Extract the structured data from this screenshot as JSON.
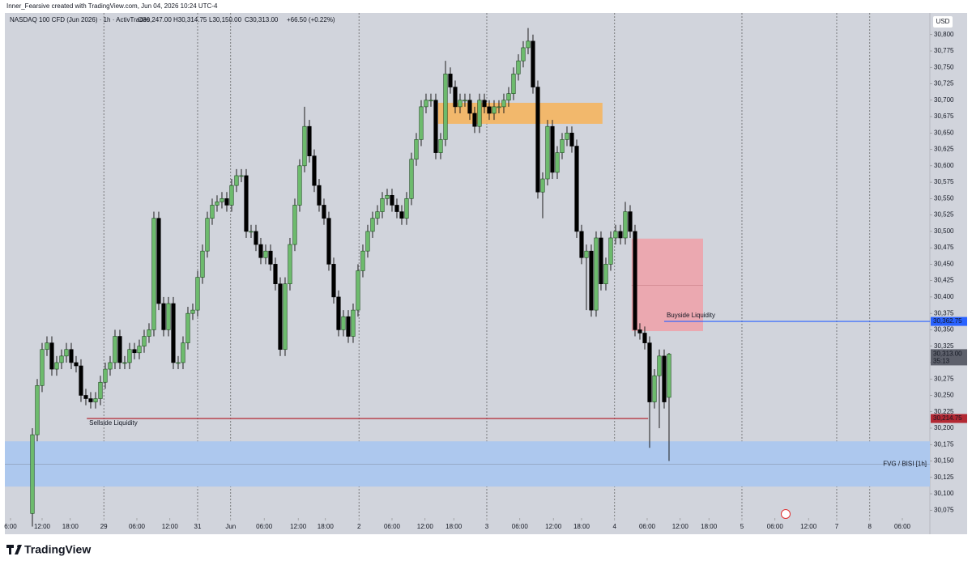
{
  "header": "Inner_Fearsive created with TradingView.com, Jun 04, 2026 10:24 UTC-4",
  "brand": "TradingView",
  "chart_data": {
    "type": "candlestick",
    "title": "NASDAQ 100 CFD (Jun 2026) · 1h · ActivTrades",
    "ohlc_labels": [
      "O30,247.00",
      "H30,314.75",
      "L30,150.00",
      "C30,313.00",
      "+66.50 (+0.22%)"
    ],
    "currency": "USD",
    "up_color": "#6dbb6d",
    "down_color": "#000000",
    "open": [
      30070,
      30190,
      30265,
      30320,
      30330,
      30290,
      30300,
      30310,
      30320,
      30300,
      30295,
      30250,
      30245,
      30240,
      30245,
      30270,
      30290,
      30300,
      30340,
      30300,
      30300,
      30320,
      30315,
      30325,
      30340,
      30350,
      30520,
      30390,
      30350,
      30390,
      30300,
      30300,
      30330,
      30375,
      30380,
      30430,
      30470,
      30520,
      30540,
      30545,
      30550,
      30540,
      30570,
      30585,
      30585,
      30500,
      30500,
      30480,
      30460,
      30470,
      30450,
      30420,
      30320,
      30420,
      30480,
      30540,
      30600,
      30660,
      30615,
      30570,
      30540,
      30520,
      30450,
      30400,
      30350,
      30370,
      30340,
      30380,
      30440,
      30470,
      30500,
      30520,
      30530,
      30550,
      30555,
      30540,
      30530,
      30520,
      30550,
      30610,
      30640,
      30690,
      30700,
      30700,
      30620,
      30640,
      30740,
      30720,
      30690,
      30700,
      30700,
      30680,
      30660,
      30700,
      30690,
      30680,
      30690,
      30690,
      30700,
      30710,
      30740,
      30760,
      30780,
      30790,
      30720,
      30560,
      30580,
      30660,
      30590,
      30620,
      30640,
      30650,
      30630,
      30500,
      30460,
      30470,
      30380,
      30490,
      30420,
      30450,
      30490,
      30500,
      30490,
      30530,
      30500,
      30350,
      30345,
      30330,
      30240,
      30280,
      30310,
      30247
    ],
    "high": [
      30200,
      30275,
      30330,
      30340,
      30340,
      30310,
      30320,
      30330,
      30330,
      30310,
      30305,
      30260,
      30255,
      30255,
      30280,
      30300,
      30310,
      30350,
      30350,
      30310,
      30330,
      30330,
      30335,
      30350,
      30360,
      30530,
      30530,
      30400,
      30400,
      30400,
      30310,
      30340,
      30385,
      30390,
      30440,
      30480,
      30530,
      30550,
      30555,
      30560,
      30560,
      30580,
      30595,
      30595,
      30595,
      30510,
      30510,
      30490,
      30480,
      30480,
      30460,
      30430,
      30430,
      30490,
      30550,
      30610,
      30690,
      30670,
      30625,
      30580,
      30550,
      30530,
      30460,
      30410,
      30380,
      30380,
      30390,
      30450,
      30480,
      30510,
      30530,
      30540,
      30560,
      30565,
      30565,
      30550,
      30540,
      30560,
      30620,
      30650,
      30700,
      30710,
      30710,
      30710,
      30650,
      30760,
      30750,
      30730,
      30710,
      30710,
      30710,
      30690,
      30710,
      30710,
      30700,
      30700,
      30700,
      30710,
      30720,
      30750,
      30770,
      30790,
      30810,
      30800,
      30730,
      30590,
      30670,
      30670,
      30630,
      30650,
      30660,
      30660,
      30640,
      30510,
      30480,
      30480,
      30500,
      30500,
      30460,
      30500,
      30510,
      30510,
      30545,
      30540,
      30510,
      30360,
      30355,
      30340,
      30290,
      30320,
      30320,
      30314.75
    ],
    "low": [
      30050,
      30180,
      30255,
      30310,
      30280,
      30280,
      30290,
      30300,
      30290,
      30285,
      30240,
      30235,
      30230,
      30230,
      30235,
      30260,
      30280,
      30290,
      30290,
      30290,
      30290,
      30305,
      30305,
      30315,
      30330,
      30340,
      30380,
      30340,
      30340,
      30290,
      30290,
      30290,
      30320,
      30365,
      30370,
      30420,
      30460,
      30510,
      30530,
      30535,
      30530,
      30530,
      30560,
      30575,
      30490,
      30490,
      30470,
      30450,
      30450,
      30440,
      30410,
      30310,
      30310,
      30410,
      30470,
      30530,
      30590,
      30605,
      30560,
      30530,
      30510,
      30440,
      30390,
      30340,
      30340,
      30330,
      30330,
      30370,
      30430,
      30460,
      30490,
      30510,
      30520,
      30540,
      30530,
      30520,
      30510,
      30510,
      30540,
      30600,
      30630,
      30680,
      30690,
      30610,
      30610,
      30630,
      30710,
      30680,
      30680,
      30690,
      30670,
      30650,
      30650,
      30680,
      30670,
      30670,
      30680,
      30680,
      30690,
      30700,
      30730,
      30750,
      30770,
      30710,
      30550,
      30520,
      30570,
      30580,
      30580,
      30610,
      30630,
      30620,
      30490,
      30450,
      30380,
      30370,
      30370,
      30410,
      30410,
      30440,
      30480,
      30480,
      30480,
      30490,
      30340,
      30335,
      30320,
      30170,
      30230,
      30200,
      30230,
      30150
    ],
    "close": [
      30190,
      30265,
      30320,
      30330,
      30290,
      30300,
      30310,
      30320,
      30300,
      30295,
      30250,
      30245,
      30240,
      30245,
      30270,
      30290,
      30300,
      30340,
      30300,
      30300,
      30320,
      30315,
      30325,
      30340,
      30350,
      30520,
      30390,
      30350,
      30390,
      30300,
      30300,
      30330,
      30375,
      30380,
      30430,
      30470,
      30520,
      30540,
      30545,
      30550,
      30540,
      30570,
      30585,
      30585,
      30500,
      30500,
      30480,
      30460,
      30470,
      30450,
      30420,
      30320,
      30420,
      30480,
      30540,
      30600,
      30660,
      30615,
      30570,
      30540,
      30520,
      30450,
      30400,
      30350,
      30370,
      30340,
      30380,
      30440,
      30470,
      30500,
      30520,
      30530,
      30550,
      30555,
      30540,
      30530,
      30520,
      30550,
      30610,
      30640,
      30690,
      30700,
      30700,
      30620,
      30640,
      30740,
      30720,
      30690,
      30700,
      30700,
      30680,
      30660,
      30700,
      30690,
      30680,
      30690,
      30690,
      30700,
      30710,
      30740,
      30760,
      30780,
      30790,
      30720,
      30560,
      30580,
      30660,
      30590,
      30620,
      30640,
      30650,
      30630,
      30500,
      30460,
      30470,
      30380,
      30490,
      30420,
      30450,
      30490,
      30500,
      30490,
      30530,
      30500,
      30350,
      30345,
      30330,
      30240,
      30280,
      30310,
      30240,
      30313
    ],
    "last_price_label": "30,313.00",
    "countdown": "35:13",
    "ylim": [
      30063,
      30833
    ],
    "yticks": [
      {
        "value": 30075,
        "label": "30,075"
      },
      {
        "value": 30100,
        "label": "30,100"
      },
      {
        "value": 30125,
        "label": "30,125"
      },
      {
        "value": 30150,
        "label": "30,150"
      },
      {
        "value": 30175,
        "label": "30,175"
      },
      {
        "value": 30200,
        "label": "30,200"
      },
      {
        "value": 30225,
        "label": "30,225"
      },
      {
        "value": 30250,
        "label": "30,250"
      },
      {
        "value": 30275,
        "label": "30,275"
      },
      {
        "value": 30300,
        "label": "30,300"
      },
      {
        "value": 30325,
        "label": "30,325"
      },
      {
        "value": 30350,
        "label": "30,350"
      },
      {
        "value": 30375,
        "label": "30,375"
      },
      {
        "value": 30400,
        "label": "30,400"
      },
      {
        "value": 30425,
        "label": "30,425"
      },
      {
        "value": 30450,
        "label": "30,450"
      },
      {
        "value": 30475,
        "label": "30,475"
      },
      {
        "value": 30500,
        "label": "30,500"
      },
      {
        "value": 30525,
        "label": "30,525"
      },
      {
        "value": 30550,
        "label": "30,550"
      },
      {
        "value": 30575,
        "label": "30,575"
      },
      {
        "value": 30600,
        "label": "30,600"
      },
      {
        "value": 30625,
        "label": "30,625"
      },
      {
        "value": 30650,
        "label": "30,650"
      },
      {
        "value": 30675,
        "label": "30,675"
      },
      {
        "value": 30700,
        "label": "30,700"
      },
      {
        "value": 30725,
        "label": "30,725"
      },
      {
        "value": 30750,
        "label": "30,750"
      },
      {
        "value": 30775,
        "label": "30,775"
      },
      {
        "value": 30800,
        "label": "30,800"
      }
    ],
    "xlim": [
      -5.33,
      184.67
    ],
    "xticks": [
      {
        "value": -4.5,
        "label": "6:00"
      },
      {
        "value": 2,
        "label": "12:00"
      },
      {
        "value": 7.8,
        "label": "18:00"
      },
      {
        "value": 14.7,
        "label": "29"
      },
      {
        "value": 21.5,
        "label": "06:00"
      },
      {
        "value": 28.3,
        "label": "12:00"
      },
      {
        "value": 34,
        "label": "31"
      },
      {
        "value": 40.8,
        "label": "Jun"
      },
      {
        "value": 47.7,
        "label": "06:00"
      },
      {
        "value": 54.7,
        "label": "12:00"
      },
      {
        "value": 60.3,
        "label": "18:00"
      },
      {
        "value": 67.2,
        "label": "2"
      },
      {
        "value": 74,
        "label": "06:00"
      },
      {
        "value": 80.8,
        "label": "12:00"
      },
      {
        "value": 86.7,
        "label": "18:00"
      },
      {
        "value": 93.5,
        "label": "3"
      },
      {
        "value": 100.3,
        "label": "06:00"
      },
      {
        "value": 107.2,
        "label": "12:00"
      },
      {
        "value": 113,
        "label": "18:00"
      },
      {
        "value": 119.8,
        "label": "4"
      },
      {
        "value": 126.5,
        "label": "06:00"
      },
      {
        "value": 133.3,
        "label": "12:00"
      },
      {
        "value": 139.2,
        "label": "18:00"
      },
      {
        "value": 146,
        "label": "5"
      },
      {
        "value": 152.8,
        "label": "06:00"
      },
      {
        "value": 159.7,
        "label": "12:00"
      },
      {
        "value": 165.5,
        "label": "7"
      },
      {
        "value": 172.3,
        "label": "8"
      },
      {
        "value": 179,
        "label": "06:00"
      }
    ],
    "boxes": [
      {
        "x": [
          83.5,
          117.3
        ],
        "y": [
          30664,
          30696
        ],
        "color": "#f5b55f"
      },
      {
        "x": [
          123.3,
          138
        ],
        "y": [
          30348,
          30489
        ],
        "mid": 30418,
        "color": "#eda3ab"
      }
    ],
    "fvg": {
      "label": "FVG / BISI [1h]",
      "y": [
        30111,
        30180
      ],
      "mid": 30145,
      "color": "#adc8ee"
    },
    "levels": [
      {
        "label": "Buyside Liquidity",
        "value": 30362.75,
        "value_label": "30,362.75",
        "x": [
          130
        ],
        "color": "#2962ff"
      },
      {
        "label": "Sellside Liquidity",
        "value": 30214.75,
        "value_label": "30,214.75",
        "x": [
          11.2,
          126.7
        ],
        "color": "#b22833"
      }
    ]
  }
}
